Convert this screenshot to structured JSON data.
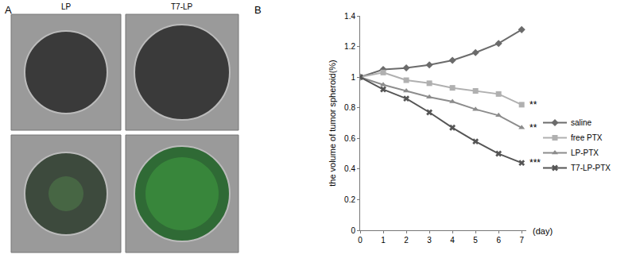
{
  "chart_data": {
    "type": "line",
    "panel_labels": [
      "A",
      "B"
    ],
    "image_labels": [
      "LP",
      "T7-LP"
    ],
    "ylabel": "the volume of tumor spheroid(%)",
    "xlabel": "(day)",
    "x": [
      0,
      1,
      2,
      3,
      4,
      5,
      6,
      7
    ],
    "series": [
      {
        "name": "saline",
        "color": "#6b6b6b",
        "marker": "diamond",
        "line_style": "solid",
        "values": [
          1,
          1.05,
          1.06,
          1.08,
          1.11,
          1.16,
          1.22,
          1.31
        ]
      },
      {
        "name": "free PTX",
        "color": "#b0b0b0",
        "marker": "square",
        "line_style": "solid",
        "values": [
          1,
          1.03,
          0.98,
          0.96,
          0.93,
          0.91,
          0.89,
          0.82
        ]
      },
      {
        "name": "LP-PTX",
        "color": "#8c8c8c",
        "marker": "triangle-up",
        "line_style": "solid",
        "values": [
          1,
          0.95,
          0.91,
          0.87,
          0.84,
          0.79,
          0.75,
          0.67
        ]
      },
      {
        "name": "T7-LP-PTX",
        "color": "#555555",
        "marker": "x",
        "line_style": "solid",
        "values": [
          1,
          0.92,
          0.86,
          0.77,
          0.67,
          0.58,
          0.5,
          0.44
        ]
      }
    ],
    "annotations": [
      {
        "series": "free PTX",
        "text": "**"
      },
      {
        "series": "LP-PTX",
        "text": "**"
      },
      {
        "series": "T7-LP-PTX",
        "text": "***"
      }
    ],
    "xlim": [
      0,
      7.2
    ],
    "xticks": [
      0,
      1,
      2,
      3,
      4,
      5,
      6,
      7
    ],
    "ylim": [
      0,
      1.4
    ],
    "yticks": [
      0,
      0.2,
      0.4,
      0.6,
      0.8,
      1,
      1.2,
      1.4
    ],
    "grid": false,
    "legend": "right"
  }
}
